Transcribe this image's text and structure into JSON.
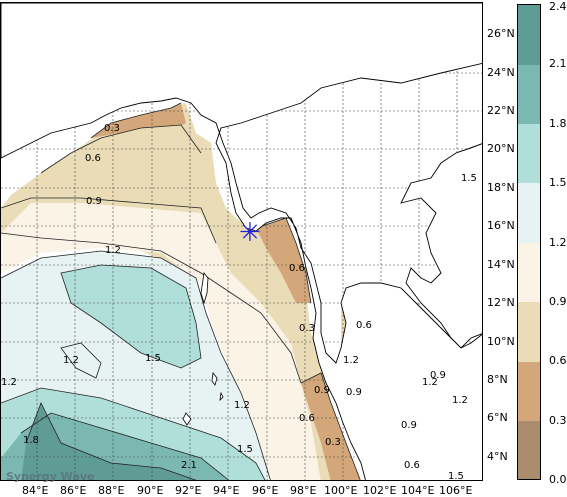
{
  "map": {
    "latitude_labels": [
      "26°N",
      "24°N",
      "22°N",
      "20°N",
      "18°N",
      "16°N",
      "14°N",
      "12°N",
      "10°N",
      "8°N",
      "6°N",
      "4°N"
    ],
    "longitude_labels": [
      "84°E",
      "86°E",
      "88°E",
      "90°E",
      "92°E",
      "94°E",
      "96°E",
      "98°E",
      "100°E",
      "102°E",
      "104°E",
      "106°E"
    ],
    "contour_labels": [
      "0.3",
      "0.6",
      "0.9",
      "1.2",
      "1.5",
      "1.2",
      "1.2",
      "1.5",
      "1.2",
      "1.8",
      "2.1",
      "1.5",
      "0.6",
      "0.3",
      "0.6",
      "0.9",
      "1.2",
      "0.9",
      "1.2",
      "0.6",
      "0.9",
      "0.3",
      "0.6",
      "0.9",
      "1.2",
      "1.5"
    ],
    "watermark": "Synergy Wave",
    "marker_symbol": "✳"
  },
  "colorbar": {
    "tick_labels": [
      "2.4",
      "2.1",
      "1.8",
      "1.5",
      "1.2",
      "0.9",
      "0.6",
      "0.3",
      "0.0"
    ],
    "colors": [
      "#5f9c96",
      "#7cb8b2",
      "#b0dfd9",
      "#e6f3f2",
      "#faf3e6",
      "#eadcb6",
      "#d3a77a",
      "#ab8c6c"
    ]
  }
}
